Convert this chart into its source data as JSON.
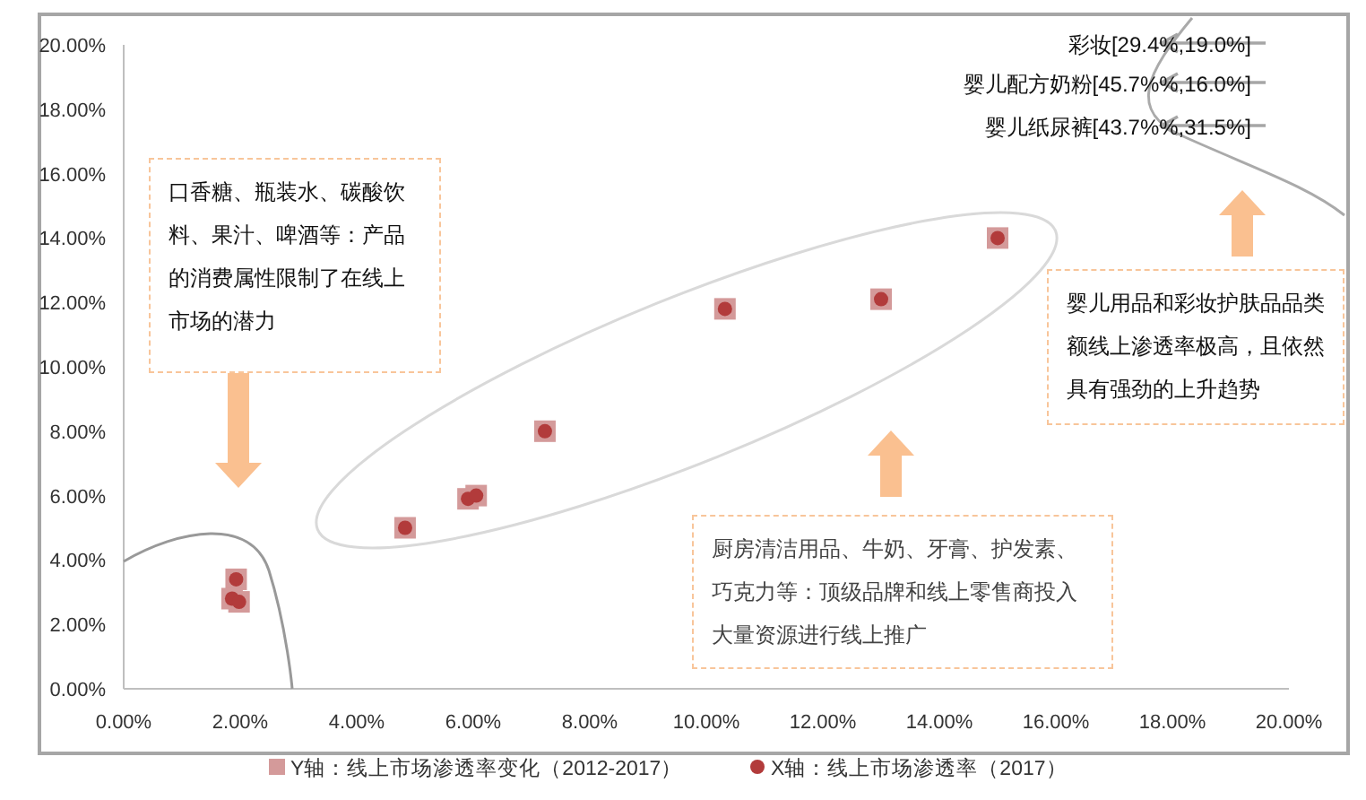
{
  "chart_data": {
    "type": "scatter",
    "xlim": [
      0,
      20
    ],
    "ylim": [
      0,
      20
    ],
    "xticks": [
      {
        "value": 0,
        "label": "0.00%"
      },
      {
        "value": 2,
        "label": "2.00%"
      },
      {
        "value": 4,
        "label": "4.00%"
      },
      {
        "value": 6,
        "label": "6.00%"
      },
      {
        "value": 8,
        "label": "8.00%"
      },
      {
        "value": 10,
        "label": "10.00%"
      },
      {
        "value": 12,
        "label": "12.00%"
      },
      {
        "value": 14,
        "label": "14.00%"
      },
      {
        "value": 16,
        "label": "16.00%"
      },
      {
        "value": 18,
        "label": "18.00%"
      },
      {
        "value": 20,
        "label": "20.00%"
      }
    ],
    "yticks": [
      {
        "value": 0,
        "label": "0.00%"
      },
      {
        "value": 2,
        "label": "2.00%"
      },
      {
        "value": 4,
        "label": "4.00%"
      },
      {
        "value": 6,
        "label": "6.00%"
      },
      {
        "value": 8,
        "label": "8.00%"
      },
      {
        "value": 10,
        "label": "10.00%"
      },
      {
        "value": 12,
        "label": "12.00%"
      },
      {
        "value": 14,
        "label": "14.00%"
      },
      {
        "value": 16,
        "label": "16.00%"
      },
      {
        "value": 18,
        "label": "18.00%"
      },
      {
        "value": 20,
        "label": "20.00%"
      }
    ],
    "legend": "bottom",
    "series": [
      {
        "name": "Y轴：线上市场渗透率变化（2012-2017）",
        "color": "#d49a9a",
        "marker": "square",
        "x": [
          1.93,
          1.86,
          1.98,
          4.83,
          5.91,
          6.05,
          7.23,
          10.32,
          13.0,
          15.0
        ],
        "values": [
          3.4,
          2.8,
          2.7,
          5.0,
          5.9,
          6.0,
          8.0,
          11.8,
          12.1,
          14.0
        ]
      },
      {
        "name": "X轴：线上市场渗透率（2017）",
        "color": "#b23b3b",
        "marker": "circle",
        "x": [
          1.93,
          1.86,
          1.98,
          4.83,
          5.91,
          6.05,
          7.23,
          10.32,
          13.0,
          15.0
        ],
        "values": [
          3.4,
          2.8,
          2.7,
          5.0,
          5.9,
          6.0,
          8.0,
          11.8,
          12.1,
          14.0
        ]
      }
    ],
    "annotations": [
      "彩妆[29.4%,19.0%]",
      "婴儿配方奶粉[45.7%%,16.0%]",
      "婴儿纸尿裤[43.7%%,31.5%]",
      "口香糖、瓶装水、碳酸饮料、果汁、啤酒等：产品的消费属性限制了在线上市场的潜力",
      "厨房清洁用品、牛奶、牙膏、护发素、巧克力等：顶级品牌和线上零售商投入大量资源进行线上推广",
      "婴儿用品和彩妆护肤品品类额线上渗透率极高，且依然具有强劲的上升趋势"
    ]
  }
}
